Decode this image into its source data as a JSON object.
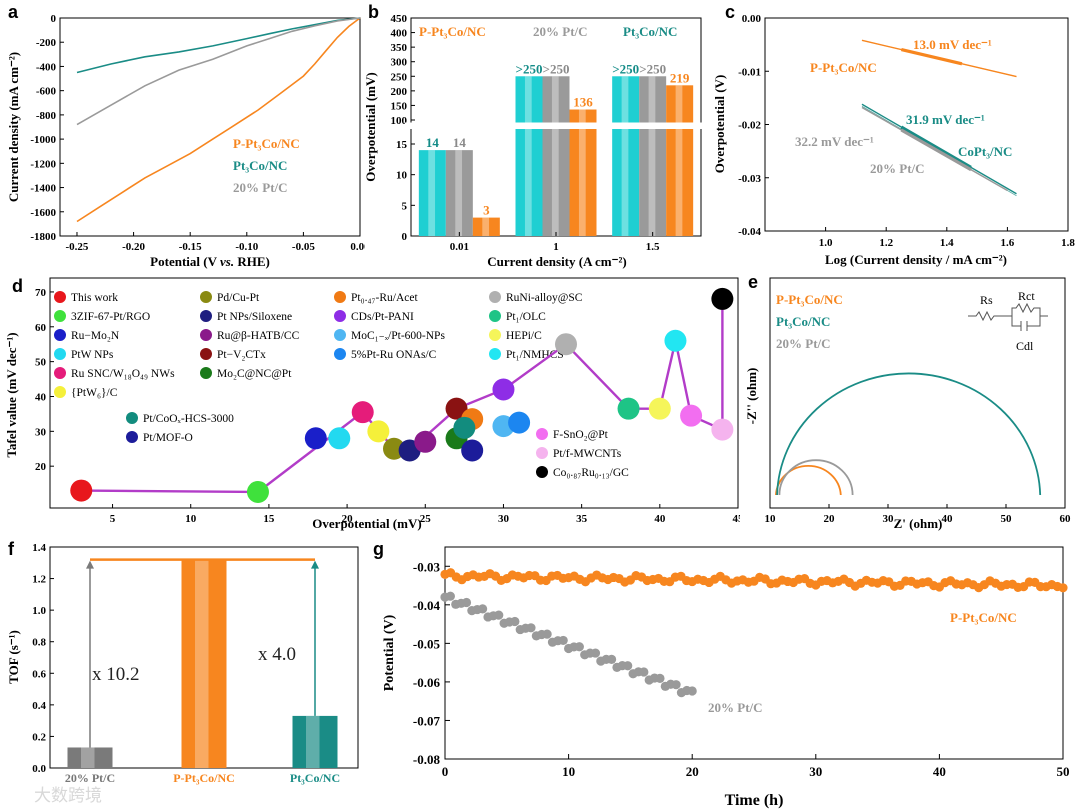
{
  "figure": {
    "watermark": "大数跨境",
    "colors": {
      "orange": "#F7861F",
      "teal": "#1A8C86",
      "gray": "#9A9A9A",
      "cyan": "#1FCFD2",
      "magenta": "#B23CC8"
    }
  },
  "chart_data": [
    {
      "id": "a",
      "panel_label": "a",
      "type": "line",
      "xlabel": "Potential (V vs. RHE)",
      "xlabel_parts": [
        "Potential (V ",
        "vs.",
        " RHE)"
      ],
      "ylabel": "Current density (mA cm⁻²)",
      "xlim": [
        -0.265,
        0.0
      ],
      "ylim": [
        -1800,
        0
      ],
      "xticks": [
        "-0.25",
        "-0.20",
        "-0.15",
        "-0.10",
        "-0.05",
        "0.00"
      ],
      "yticks": [
        "-1800",
        "-1600",
        "-1400",
        "-1200",
        "-1000",
        "-800",
        "-600",
        "-400",
        "-200",
        "0"
      ],
      "legend": [
        "P-Pt₃Co/NC",
        "Pt₃Co/NC",
        "20% Pt/C"
      ],
      "series": [
        {
          "name": "P-Pt₃Co/NC",
          "color": "#F7861F",
          "x": [
            -0.25,
            -0.23,
            -0.21,
            -0.19,
            -0.17,
            -0.15,
            -0.13,
            -0.11,
            -0.09,
            -0.07,
            -0.05,
            -0.04,
            -0.03,
            -0.02,
            -0.01,
            0.0
          ],
          "y": [
            -1680,
            -1560,
            -1440,
            -1320,
            -1220,
            -1120,
            -1000,
            -880,
            -760,
            -620,
            -480,
            -380,
            -270,
            -160,
            -70,
            0
          ]
        },
        {
          "name": "Pt₃Co/NC",
          "color": "#1A8C86",
          "x": [
            -0.25,
            -0.22,
            -0.19,
            -0.16,
            -0.13,
            -0.1,
            -0.08,
            -0.06,
            -0.04,
            -0.02,
            0.0
          ],
          "y": [
            -450,
            -380,
            -320,
            -280,
            -230,
            -170,
            -130,
            -90,
            -55,
            -20,
            0
          ]
        },
        {
          "name": "20% Pt/C",
          "color": "#9A9A9A",
          "x": [
            -0.25,
            -0.22,
            -0.19,
            -0.16,
            -0.13,
            -0.1,
            -0.08,
            -0.06,
            -0.04,
            -0.02,
            0.0
          ],
          "y": [
            -880,
            -720,
            -560,
            -430,
            -340,
            -230,
            -170,
            -110,
            -65,
            -25,
            0
          ]
        }
      ]
    },
    {
      "id": "b",
      "panel_label": "b",
      "type": "bar",
      "xlabel": "Current density (A cm⁻²)",
      "ylabel": "Overpotential (mV)",
      "categories": [
        "0.01",
        "1",
        "1.5"
      ],
      "yticks_low": [
        "0",
        "5",
        "10",
        "15"
      ],
      "yticks_high": [
        "100",
        "150",
        "200",
        "250",
        "300",
        "350",
        "400",
        "450"
      ],
      "legend": [
        "P-Pt₃Co/NC",
        "20% Pt/C",
        "Pt₃Co/NC"
      ],
      "series": [
        {
          "name": "Pt₃Co/NC",
          "color": "#1FCFD2",
          "values": [
            14,
            250,
            250
          ],
          "labels": [
            "14",
            ">250",
            ">250"
          ]
        },
        {
          "name": "20% Pt/C",
          "color": "#9A9A9A",
          "values": [
            14,
            250,
            250
          ],
          "labels": [
            "14",
            ">250",
            ">250"
          ]
        },
        {
          "name": "P-Pt₃Co/NC",
          "color": "#F7861F",
          "values": [
            3,
            136,
            219
          ],
          "labels": [
            "3",
            "136",
            "219"
          ]
        }
      ]
    },
    {
      "id": "c",
      "panel_label": "c",
      "type": "line",
      "xlabel": "Log (Current density / mA cm⁻²)",
      "ylabel": "Overpotential (V)",
      "xlim": [
        0.8,
        1.8
      ],
      "ylim": [
        -0.04,
        0.0
      ],
      "xticks": [
        "1.0",
        "1.2",
        "1.4",
        "1.6",
        "1.8"
      ],
      "yticks": [
        "-0.04",
        "-0.03",
        "-0.02",
        "-0.01",
        "0.00"
      ],
      "annotations": [
        "13.0 mV dec⁻¹",
        "31.9 mV dec⁻¹",
        "32.2 mV dec⁻¹",
        "P-Pt₃Co/NC",
        "CoPt₃/NC",
        "20% Pt/C"
      ],
      "series": [
        {
          "name": "P-Pt₃Co/NC",
          "color": "#F7861F",
          "x": [
            1.12,
            1.63
          ],
          "y": [
            -0.0042,
            -0.011
          ],
          "fit": [
            1.25,
            1.45
          ]
        },
        {
          "name": "CoPt₃/NC",
          "color": "#1A8C86",
          "x": [
            1.12,
            1.63
          ],
          "y": [
            -0.0162,
            -0.033
          ],
          "fit": [
            1.25,
            1.48
          ]
        },
        {
          "name": "20% Pt/C",
          "color": "#9A9A9A",
          "x": [
            1.12,
            1.6
          ],
          "y": [
            -0.0168,
            -0.0324
          ],
          "fit": [
            1.25,
            1.48
          ]
        }
      ]
    },
    {
      "id": "d",
      "panel_label": "d",
      "type": "scatter",
      "xlabel": "Overpotential (mV)",
      "ylabel": "Tafel value (mV dec⁻¹)",
      "xlim": [
        1,
        45
      ],
      "ylim": [
        8,
        74
      ],
      "xticks": [
        "5",
        "10",
        "15",
        "20",
        "25",
        "30",
        "35",
        "40",
        "45"
      ],
      "yticks": [
        "20",
        "30",
        "40",
        "50",
        "60",
        "70"
      ],
      "legend": [
        {
          "label": "This work",
          "color": "#E8171C"
        },
        {
          "label": "3ZIF-67-Pt/RGO",
          "color": "#3FE13C"
        },
        {
          "label": "Ru−Mo₂N",
          "color": "#1A1FC9"
        },
        {
          "label": "PtW NPs",
          "color": "#22D9F0"
        },
        {
          "label": "Ru SNC/W₁₈O₄₉ NWs",
          "color": "#E51C7A"
        },
        {
          "label": "{PtW₆}/C",
          "color": "#F5F03A"
        },
        {
          "label": "Pd/Cu-Pt",
          "color": "#8A8A12"
        },
        {
          "label": "Pt NPs/Siloxene",
          "color": "#1E1E80"
        },
        {
          "label": "Ru@β-HATB/CC",
          "color": "#8A1A8A"
        },
        {
          "label": "Pt−V₂CTx",
          "color": "#8A1212"
        },
        {
          "label": "Mo₂C@NC@Pt",
          "color": "#1A7A1A"
        },
        {
          "label": "Pt₀.₄₇-Ru/Acet",
          "color": "#F07A14"
        },
        {
          "label": "CDs/Pt-PANI",
          "color": "#8E2DE6"
        },
        {
          "label": "MoC₁₋ₓ/Pt-600-NPs",
          "color": "#4FB6F2"
        },
        {
          "label": "5%Pt-Ru ONAs/C",
          "color": "#1C86F0"
        },
        {
          "label": "RuNi-alloy@SC",
          "color": "#B0B0B0"
        },
        {
          "label": "Pt₁/OLC",
          "color": "#1EC486"
        },
        {
          "label": "HEPi/C",
          "color": "#F5F55A"
        },
        {
          "label": "Pt₁/NMHCS",
          "color": "#22E6F2"
        },
        {
          "label": "Pt/CoOₓ-HCS-3000",
          "color": "#128C7E"
        },
        {
          "label": "Pt/MOF-O",
          "color": "#1C1C9A"
        },
        {
          "label": "F-SnO₂@Pt",
          "color": "#F26EF0"
        },
        {
          "label": "Pt/f-MWCNTs",
          "color": "#F5B3EE"
        },
        {
          "label": "Co₀.₈₇Ru₀.₁₃/GC",
          "color": "#000000"
        }
      ],
      "points": [
        {
          "x": 3,
          "y": 13,
          "color": "#E8171C"
        },
        {
          "x": 14.3,
          "y": 12.6,
          "color": "#3FE13C"
        },
        {
          "x": 18,
          "y": 28,
          "color": "#1A1FC9"
        },
        {
          "x": 19.5,
          "y": 28,
          "color": "#22D9F0"
        },
        {
          "x": 21,
          "y": 35.5,
          "color": "#E51C7A"
        },
        {
          "x": 22,
          "y": 30,
          "color": "#F5F03A"
        },
        {
          "x": 23,
          "y": 25,
          "color": "#8A8A12"
        },
        {
          "x": 24,
          "y": 24.5,
          "color": "#1E1E80"
        },
        {
          "x": 25,
          "y": 27,
          "color": "#8A1A8A"
        },
        {
          "x": 27,
          "y": 36.5,
          "color": "#8A1212"
        },
        {
          "x": 27,
          "y": 28,
          "color": "#1A7A1A"
        },
        {
          "x": 28,
          "y": 33.5,
          "color": "#F07A14"
        },
        {
          "x": 28,
          "y": 24.5,
          "color": "#1C1C9A"
        },
        {
          "x": 30,
          "y": 42,
          "color": "#8E2DE6"
        },
        {
          "x": 30,
          "y": 31.5,
          "color": "#4FB6F2"
        },
        {
          "x": 31,
          "y": 32.5,
          "color": "#1C86F0"
        },
        {
          "x": 34,
          "y": 55,
          "color": "#B0B0B0"
        },
        {
          "x": 38,
          "y": 36.5,
          "color": "#1EC486"
        },
        {
          "x": 40,
          "y": 36.5,
          "color": "#F5F55A"
        },
        {
          "x": 41,
          "y": 56,
          "color": "#22E6F2"
        },
        {
          "x": 42,
          "y": 34.5,
          "color": "#F26EF0"
        },
        {
          "x": 44,
          "y": 30.5,
          "color": "#F5B3EE"
        },
        {
          "x": 27.5,
          "y": 31,
          "color": "#128C7E"
        },
        {
          "x": 44,
          "y": 68,
          "color": "#000000"
        }
      ],
      "trend": [
        [
          3,
          13
        ],
        [
          14.3,
          12.6
        ],
        [
          21,
          35.5
        ],
        [
          23,
          25
        ],
        [
          24,
          24.5
        ],
        [
          27,
          36.5
        ],
        [
          30,
          42
        ],
        [
          34,
          55
        ],
        [
          38,
          36.5
        ],
        [
          40,
          36.5
        ],
        [
          41,
          56
        ],
        [
          42,
          34.5
        ],
        [
          44,
          30.5
        ],
        [
          44,
          68
        ]
      ]
    },
    {
      "id": "e",
      "panel_label": "e",
      "type": "line",
      "xlabel": "Z' (ohm)",
      "ylabel": "-Z'' (ohm)",
      "xlim": [
        10,
        60
      ],
      "ylim": [
        0,
        45
      ],
      "xticks": [
        "10",
        "20",
        "30",
        "40",
        "50",
        "60"
      ],
      "legend": [
        "P-Pt₃Co/NC",
        "Pt₃Co/NC",
        "20% Pt/C"
      ],
      "circuit_labels": {
        "rs": "Rs",
        "rct": "Rct",
        "cdl": "Cdl"
      },
      "series": [
        {
          "name": "P-Pt₃Co/NC",
          "color": "#F7861F",
          "center": 16.5,
          "radius": 5.5
        },
        {
          "name": "Pt₃Co/NC",
          "color": "#1A8C86",
          "center": 33.5,
          "radius": 22.3
        },
        {
          "name": "20% Pt/C",
          "color": "#9A9A9A",
          "center": 17.8,
          "radius": 6.2
        }
      ]
    },
    {
      "id": "f",
      "panel_label": "f",
      "type": "bar",
      "ylabel": "TOF (s⁻¹)",
      "ylim": [
        0,
        1.4
      ],
      "yticks": [
        "0.0",
        "0.2",
        "0.4",
        "0.6",
        "0.8",
        "1.0",
        "1.2",
        "1.4"
      ],
      "categories": [
        "20% Pt/C",
        "P-Pt₃Co/NC",
        "Pt₃Co/NC"
      ],
      "values": [
        0.13,
        1.32,
        0.33
      ],
      "colors": [
        "#7A7A7A",
        "#F7861F",
        "#1A8C86"
      ],
      "annotations": [
        "x 10.2",
        "x 4.0"
      ]
    },
    {
      "id": "g",
      "panel_label": "g",
      "type": "scatter",
      "xlabel": "Time (h)",
      "ylabel": "Potential (V)",
      "xlim": [
        0,
        50
      ],
      "ylim": [
        -0.08,
        -0.025
      ],
      "xticks": [
        "0",
        "10",
        "20",
        "30",
        "40",
        "50"
      ],
      "yticks": [
        "-0.03",
        "-0.04",
        "-0.05",
        "-0.06",
        "-0.07",
        "-0.08"
      ],
      "series": [
        {
          "name": "P-Pt₃Co/NC",
          "color": "#F7861F",
          "x_start": 0,
          "x_end": 50,
          "y_start": -0.0325,
          "y_end": -0.035
        },
        {
          "name": "20% Pt/C",
          "color": "#9A9A9A",
          "x_start": 0,
          "x_end": 20,
          "y_start": -0.038,
          "y_end": -0.063
        }
      ]
    }
  ]
}
